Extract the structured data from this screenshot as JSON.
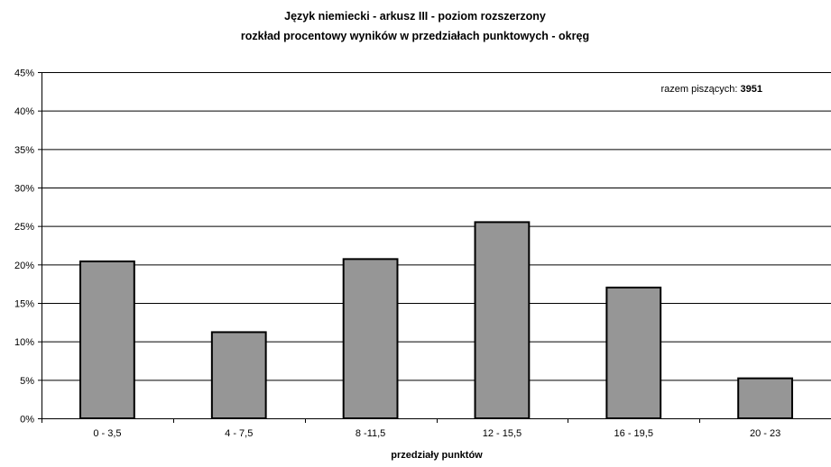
{
  "chart_data": {
    "type": "bar",
    "title": "Język niemiecki - arkusz III - poziom rozszerzony",
    "subtitle": "rozkład procentowy wyników w przedziałach punktowych - okręg",
    "categories": [
      "0 - 3,5",
      "4 - 7,5",
      "8 -11,5",
      "12 - 15,5",
      "16 - 19,5",
      "20 - 23"
    ],
    "values": [
      20.4,
      11.2,
      20.7,
      25.5,
      17.0,
      5.2
    ],
    "xlabel": "przedziały punktów",
    "ylabel": "",
    "ylim": [
      0,
      45
    ],
    "y_ticks": [
      0,
      5,
      10,
      15,
      20,
      25,
      30,
      35,
      40,
      45
    ],
    "y_tick_labels": [
      "0%",
      "5%",
      "10%",
      "15%",
      "20%",
      "25%",
      "30%",
      "35%",
      "40%",
      "45%"
    ],
    "grid": true,
    "legend": "none",
    "annotation": {
      "label": "razem piszących: ",
      "value": "3951",
      "placement": "top-right"
    },
    "colors": {
      "bar_fill": "#969696",
      "bar_stroke": "#000000",
      "grid": "#000000",
      "background": "#ffffff"
    }
  }
}
